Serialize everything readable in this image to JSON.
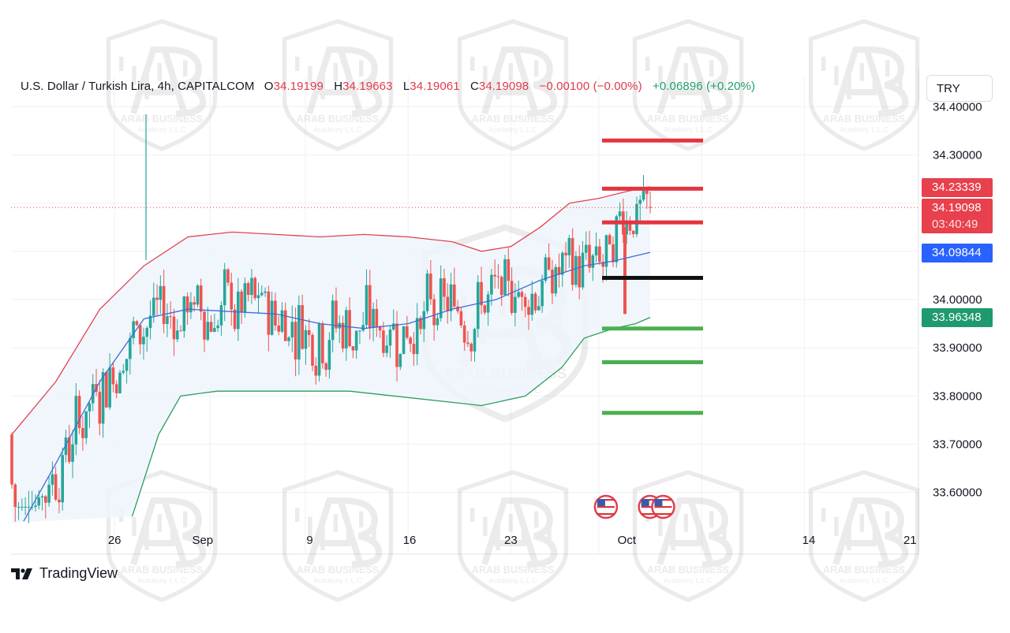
{
  "legend": {
    "symbol": "U.S. Dollar / Turkish Lira, 4h, CAPITALCOM",
    "o_label": "O",
    "o_value": "34.19199",
    "h_label": "H",
    "h_value": "34.19663",
    "l_label": "L",
    "l_value": "34.19061",
    "c_label": "C",
    "c_value": "34.19098",
    "change": "−0.00100 (−0.00%)",
    "indicator": "+0.06896 (+0.20%)"
  },
  "currency_button": "TRY",
  "price_tags": {
    "upper_band": "34.23339",
    "last_price": "34.19098",
    "countdown": "03:40:49",
    "middle_band": "34.09844",
    "lower_band": "33.96348"
  },
  "branding": {
    "logo_text": "TradingView",
    "watermark_text": "ARAB BUSINESS",
    "watermark_sub": "Academy L.L.C"
  },
  "colors": {
    "bull": "#26a69a",
    "bear": "#ef5350",
    "upper_band": "#e0444f",
    "middle_band": "#3d6dd8",
    "lower_band": "#2a9d5c",
    "band_fill": "#eef5fc",
    "tag_red": "#e8404c",
    "tag_blue": "#2962ff",
    "tag_green": "#1f9a6e",
    "resistance": "#e53340",
    "pivot": "#111111",
    "support": "#4caf50"
  },
  "chart_data": {
    "type": "candlestick",
    "title": "U.S. Dollar / Turkish Lira, 4h, CAPITALCOM",
    "y_ticks": [
      "34.40000",
      "34.30000",
      "34.00000",
      "33.90000",
      "33.80000",
      "33.70000",
      "33.60000"
    ],
    "x_ticks": [
      "26",
      "Sep",
      "9",
      "16",
      "23",
      "Oct",
      "14",
      "21"
    ],
    "ylim": [
      33.54,
      34.41
    ],
    "last_price": 34.19098,
    "bollinger": {
      "upper": [
        [
          0,
          33.72
        ],
        [
          3,
          33.83
        ],
        [
          6,
          33.98
        ],
        [
          9,
          34.07
        ],
        [
          12,
          34.13
        ],
        [
          15,
          34.14
        ],
        [
          18,
          34.135
        ],
        [
          21,
          34.13
        ],
        [
          24,
          34.135
        ],
        [
          27,
          34.13
        ],
        [
          30,
          34.12
        ],
        [
          32,
          34.1
        ],
        [
          34,
          34.11
        ],
        [
          36,
          34.15
        ],
        [
          38,
          34.2
        ],
        [
          40,
          34.21
        ],
        [
          42,
          34.225
        ],
        [
          43.5,
          34.234
        ]
      ],
      "middle": [
        [
          0.8,
          33.54
        ],
        [
          3,
          33.66
        ],
        [
          6,
          33.83
        ],
        [
          9,
          33.96
        ],
        [
          12,
          33.98
        ],
        [
          15,
          33.975
        ],
        [
          18,
          33.97
        ],
        [
          21,
          33.95
        ],
        [
          24,
          33.94
        ],
        [
          27,
          33.95
        ],
        [
          30,
          33.98
        ],
        [
          33,
          34.0
        ],
        [
          36,
          34.04
        ],
        [
          39,
          34.07
        ],
        [
          41,
          34.08
        ],
        [
          43.5,
          34.098
        ]
      ],
      "lower": [
        [
          8.2,
          33.55
        ],
        [
          10,
          33.72
        ],
        [
          11.5,
          33.8
        ],
        [
          14,
          33.81
        ],
        [
          17,
          33.81
        ],
        [
          20,
          33.81
        ],
        [
          23,
          33.81
        ],
        [
          26,
          33.8
        ],
        [
          29,
          33.79
        ],
        [
          32,
          33.78
        ],
        [
          35,
          33.8
        ],
        [
          37.5,
          33.86
        ],
        [
          39,
          33.92
        ],
        [
          41,
          33.94
        ],
        [
          42.5,
          33.95
        ],
        [
          43.5,
          33.963
        ]
      ]
    },
    "candle_span": {
      "x_start": 0,
      "x_end": 43.5,
      "count": 190
    },
    "horizontal_levels": [
      {
        "kind": "resistance",
        "value": 34.33
      },
      {
        "kind": "resistance",
        "value": 34.23
      },
      {
        "kind": "resistance",
        "value": 34.16
      },
      {
        "kind": "pivot",
        "value": 34.045
      },
      {
        "kind": "support",
        "value": 33.94
      },
      {
        "kind": "support",
        "value": 33.87
      },
      {
        "kind": "support",
        "value": 33.765
      }
    ],
    "event_markers": [
      {
        "country": "US",
        "x": 41.5
      },
      {
        "country": "US",
        "x": 44.5
      },
      {
        "country": "US",
        "x": 45.4
      }
    ]
  }
}
